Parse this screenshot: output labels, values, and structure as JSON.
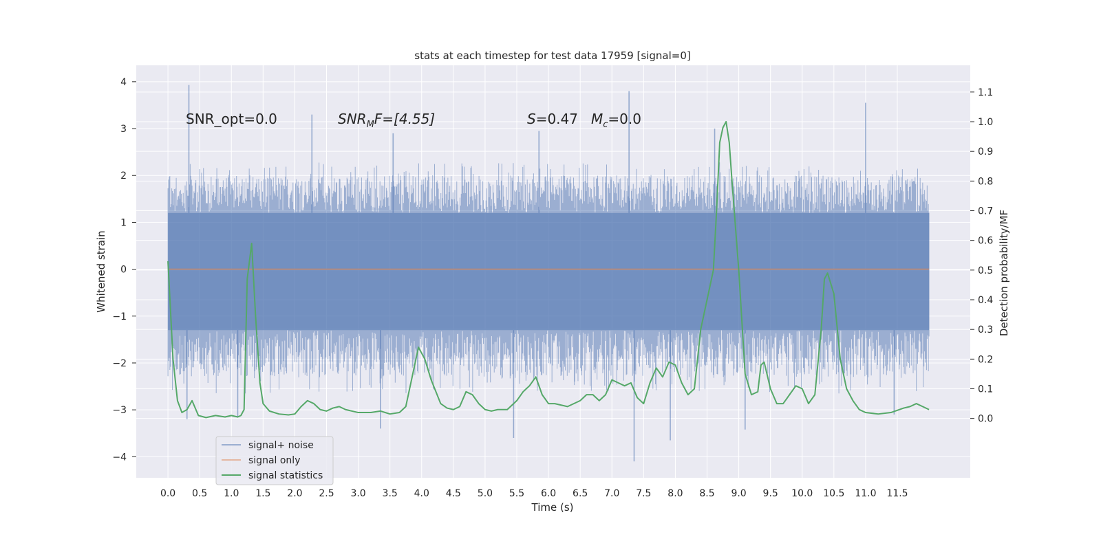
{
  "chart_data": {
    "type": "line",
    "title": "stats at each timestep for test data 17959 [signal=0]",
    "xlabel": "Time (s)",
    "ylabel_left": "Whitened strain",
    "ylabel_right": "Detection probability/MF",
    "xlim": [
      -0.5,
      12.65
    ],
    "ylim_left": [
      -4.45,
      4.35
    ],
    "ylim_right": [
      -0.2,
      1.19
    ],
    "x_ticks": [
      0.0,
      0.5,
      1.0,
      1.5,
      2.0,
      2.5,
      3.0,
      3.5,
      4.0,
      4.5,
      5.0,
      5.5,
      6.0,
      6.5,
      7.0,
      7.5,
      8.0,
      8.5,
      9.0,
      9.5,
      10.0,
      10.5,
      11.0,
      11.5
    ],
    "x_tick_labels": [
      "0.0",
      "0.5",
      "1.0",
      "1.5",
      "2.0",
      "2.5",
      "3.0",
      "3.5",
      "4.0",
      "4.5",
      "5.0",
      "5.5",
      "6.0",
      "6.5",
      "7.0",
      "7.5",
      "8.0",
      "8.5",
      "9.0",
      "9.5",
      "10.0",
      "10.5",
      "11.0",
      "11.5"
    ],
    "y_ticks_left": [
      -4,
      -3,
      -2,
      -1,
      0,
      1,
      2,
      3,
      4
    ],
    "y_tick_labels_left": [
      "−4",
      "−3",
      "−2",
      "−1",
      "0",
      "1",
      "2",
      "3",
      "4"
    ],
    "y_ticks_right": [
      0.0,
      0.1,
      0.2,
      0.3,
      0.4,
      0.5,
      0.6,
      0.7,
      0.8,
      0.9,
      1.0,
      1.1
    ],
    "y_tick_labels_right": [
      "0.0",
      "0.1",
      "0.2",
      "0.3",
      "0.4",
      "0.5",
      "0.6",
      "0.7",
      "0.8",
      "0.9",
      "1.0",
      "1.1"
    ],
    "grid": true,
    "legend_placement": "lower-left",
    "annotations": {
      "snr_opt": "SNR_opt=0.0",
      "snr_mf_main": "SNR",
      "snr_mf_sub": "M",
      "snr_mf_value": "F=[4.55]",
      "s_symbol": "S",
      "s_value": "=0.47",
      "mc_main": "M",
      "mc_sub": "c",
      "mc_value": "=0.0"
    },
    "series": [
      {
        "name": "signal+ noise",
        "color": "#4c72b0",
        "axis": "left",
        "kind": "noise-band",
        "x_range": [
          0.0,
          12.0
        ],
        "core_band": [
          -1.3,
          1.2
        ],
        "typical_max": 2.0,
        "typical_min": -2.3,
        "peaks_max": [
          [
            0.33,
            3.93
          ],
          [
            2.27,
            3.3
          ],
          [
            7.27,
            3.8
          ],
          [
            11.0,
            3.55
          ],
          [
            3.55,
            2.9
          ],
          [
            5.85,
            2.95
          ],
          [
            8.62,
            3.0
          ]
        ],
        "peaks_min": [
          [
            7.35,
            -4.1
          ],
          [
            7.92,
            -3.65
          ],
          [
            9.1,
            -3.42
          ],
          [
            5.45,
            -3.6
          ],
          [
            3.35,
            -3.4
          ],
          [
            1.1,
            -3.15
          ],
          [
            0.3,
            -3.2
          ],
          [
            11.45,
            -3.1
          ]
        ]
      },
      {
        "name": "signal only",
        "color": "#dd8452",
        "axis": "left",
        "x": [
          0.0,
          12.0
        ],
        "y": [
          0.0,
          0.0
        ]
      },
      {
        "name": "signal statistics",
        "color": "#55a868",
        "axis": "right",
        "x": [
          0.0,
          0.08,
          0.15,
          0.22,
          0.3,
          0.38,
          0.48,
          0.6,
          0.75,
          0.9,
          1.0,
          1.1,
          1.15,
          1.2,
          1.25,
          1.32,
          1.38,
          1.45,
          1.5,
          1.6,
          1.75,
          1.9,
          2.0,
          2.1,
          2.2,
          2.3,
          2.4,
          2.5,
          2.6,
          2.7,
          2.8,
          3.0,
          3.2,
          3.35,
          3.5,
          3.65,
          3.75,
          3.85,
          3.95,
          4.05,
          4.15,
          4.3,
          4.4,
          4.5,
          4.6,
          4.7,
          4.8,
          4.9,
          5.0,
          5.1,
          5.2,
          5.35,
          5.5,
          5.6,
          5.7,
          5.8,
          5.9,
          6.0,
          6.1,
          6.3,
          6.5,
          6.6,
          6.7,
          6.8,
          6.9,
          7.0,
          7.1,
          7.2,
          7.3,
          7.4,
          7.5,
          7.6,
          7.7,
          7.8,
          7.9,
          8.0,
          8.1,
          8.2,
          8.3,
          8.4,
          8.5,
          8.6,
          8.65,
          8.7,
          8.75,
          8.8,
          8.85,
          8.9,
          9.0,
          9.1,
          9.2,
          9.3,
          9.35,
          9.4,
          9.5,
          9.6,
          9.7,
          9.8,
          9.9,
          10.0,
          10.1,
          10.2,
          10.3,
          10.35,
          10.4,
          10.5,
          10.6,
          10.7,
          10.8,
          10.9,
          11.0,
          11.2,
          11.4,
          11.6,
          11.7,
          11.8,
          11.9,
          12.0
        ],
        "y": [
          0.53,
          0.2,
          0.06,
          0.02,
          0.03,
          0.06,
          0.01,
          0.003,
          0.01,
          0.005,
          0.01,
          0.005,
          0.01,
          0.03,
          0.47,
          0.59,
          0.35,
          0.12,
          0.05,
          0.025,
          0.015,
          0.012,
          0.015,
          0.04,
          0.06,
          0.05,
          0.03,
          0.025,
          0.035,
          0.04,
          0.03,
          0.02,
          0.02,
          0.025,
          0.015,
          0.02,
          0.04,
          0.14,
          0.24,
          0.2,
          0.13,
          0.05,
          0.035,
          0.03,
          0.04,
          0.09,
          0.08,
          0.05,
          0.03,
          0.025,
          0.03,
          0.03,
          0.06,
          0.09,
          0.11,
          0.14,
          0.08,
          0.05,
          0.05,
          0.04,
          0.06,
          0.08,
          0.08,
          0.06,
          0.08,
          0.13,
          0.12,
          0.11,
          0.12,
          0.07,
          0.05,
          0.12,
          0.17,
          0.14,
          0.19,
          0.18,
          0.12,
          0.08,
          0.1,
          0.3,
          0.4,
          0.5,
          0.7,
          0.93,
          0.98,
          1.0,
          0.93,
          0.78,
          0.5,
          0.15,
          0.08,
          0.09,
          0.18,
          0.19,
          0.1,
          0.05,
          0.05,
          0.08,
          0.11,
          0.1,
          0.05,
          0.08,
          0.3,
          0.47,
          0.49,
          0.42,
          0.2,
          0.1,
          0.06,
          0.03,
          0.02,
          0.015,
          0.02,
          0.035,
          0.04,
          0.05,
          0.04,
          0.03
        ]
      }
    ]
  }
}
